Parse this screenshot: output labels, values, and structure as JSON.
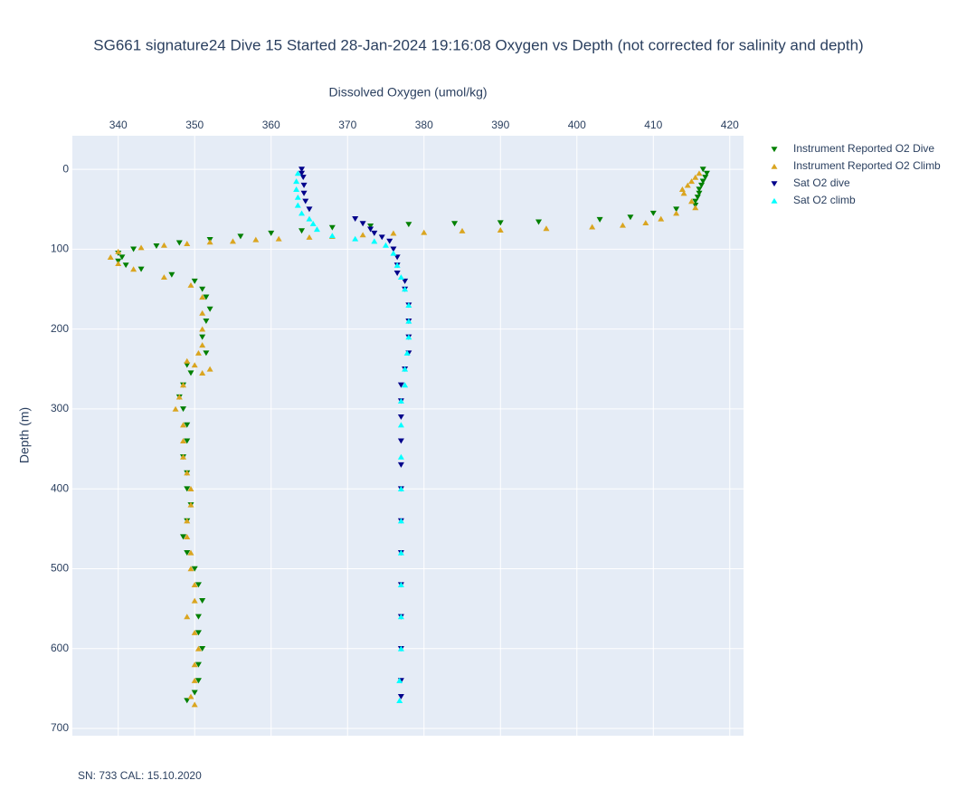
{
  "chart_data": {
    "type": "scatter",
    "title": "SG661 signature24 Dive 15 Started 28-Jan-2024 19:16:08  Oxygen vs Depth (not corrected for salinity and depth)",
    "x_label": "Dissolved Oxygen (umol/kg)",
    "y_label": "Depth (m)",
    "annotation": "SN: 733  CAL: 15.10.2020",
    "xlim": [
      334,
      421.8
    ],
    "xticks": [
      340,
      350,
      360,
      370,
      380,
      390,
      400,
      410,
      420
    ],
    "ylim": [
      -42,
      709
    ],
    "yticks": [
      0,
      100,
      200,
      300,
      400,
      500,
      600,
      700
    ],
    "y_reversed": true,
    "grid": true,
    "legend": "top-right",
    "series": [
      {
        "name": "Instrument Reported O2 Dive",
        "color": "#008000",
        "marker": "triangle-down",
        "y": [
          0,
          5,
          10,
          15,
          20,
          25,
          30,
          35,
          40,
          45,
          50,
          55,
          60,
          63,
          66,
          67,
          68,
          69,
          71,
          73,
          77,
          80,
          84,
          88,
          92,
          96,
          100,
          105,
          110,
          115,
          120,
          125,
          132,
          140,
          150,
          160,
          175,
          190,
          210,
          230,
          245,
          255,
          270,
          285,
          300,
          320,
          340,
          360,
          380,
          400,
          420,
          440,
          460,
          480,
          500,
          520,
          540,
          560,
          580,
          600,
          620,
          640,
          655,
          665
        ],
        "x": [
          416.5,
          417,
          416.8,
          416.5,
          416.3,
          416,
          416,
          415.8,
          415.5,
          415.5,
          413,
          410,
          407,
          403,
          395,
          390,
          384,
          378,
          373,
          368,
          364,
          360,
          356,
          352,
          348,
          345,
          342,
          340,
          340.5,
          340,
          341,
          343,
          347,
          350,
          351,
          351.5,
          352,
          351.5,
          351,
          351.5,
          349,
          349.5,
          348.5,
          348,
          348.5,
          349,
          349,
          348.5,
          349,
          349,
          349.5,
          349,
          348.5,
          349,
          350,
          350.5,
          351,
          350.5,
          350.5,
          351,
          350.5,
          350.5,
          350,
          349
        ]
      },
      {
        "name": "Instrument Reported O2 Climb",
        "color": "#daa520",
        "marker": "triangle-up",
        "y": [
          670,
          660,
          640,
          620,
          600,
          580,
          560,
          540,
          520,
          500,
          480,
          460,
          440,
          420,
          400,
          380,
          360,
          340,
          320,
          300,
          285,
          270,
          255,
          250,
          245,
          240,
          230,
          220,
          200,
          180,
          160,
          145,
          135,
          125,
          118,
          110,
          103,
          98,
          95,
          93,
          91,
          90,
          88,
          87,
          85,
          84,
          82,
          80,
          79,
          77,
          76,
          74,
          72,
          70,
          67,
          62,
          55,
          48,
          40,
          30,
          25,
          20,
          15,
          10,
          5
        ],
        "x": [
          350,
          349.5,
          350,
          350,
          350.5,
          350,
          349,
          350,
          350,
          349.5,
          349.5,
          349,
          349,
          349.5,
          349.5,
          349,
          348.5,
          348.5,
          348.5,
          347.5,
          348,
          348.5,
          351,
          352,
          350,
          349,
          350.5,
          351,
          351,
          351,
          351,
          349.5,
          346,
          342,
          340,
          339,
          340,
          343,
          346,
          349,
          352,
          355,
          358,
          361,
          365,
          368,
          372,
          376,
          380,
          385,
          390,
          396,
          402,
          406,
          409,
          411,
          413,
          415.5,
          415,
          414,
          413.8,
          414.5,
          415,
          415.5,
          416
        ]
      },
      {
        "name": "Sat O2 dive",
        "color": "#00008b",
        "marker": "triangle-down",
        "y": [
          0,
          5,
          10,
          20,
          30,
          40,
          50,
          62,
          68,
          75,
          80,
          85,
          90,
          100,
          110,
          120,
          130,
          140,
          150,
          170,
          190,
          210,
          230,
          250,
          270,
          290,
          310,
          340,
          370,
          400,
          440,
          480,
          520,
          560,
          600,
          640,
          660
        ],
        "x": [
          364,
          364,
          364.2,
          364.3,
          364.3,
          364.5,
          365,
          371,
          372,
          373,
          373.5,
          374.5,
          375.5,
          376,
          376.5,
          376.5,
          376.5,
          377.5,
          377.5,
          378,
          378,
          378,
          378,
          377.5,
          377,
          377,
          377,
          377,
          377,
          377,
          377,
          377,
          377,
          377,
          377,
          377,
          377
        ]
      },
      {
        "name": "Sat O2 climb",
        "color": "#00ffff",
        "marker": "triangle-up",
        "y": [
          665,
          640,
          600,
          560,
          520,
          480,
          440,
          400,
          360,
          320,
          290,
          270,
          250,
          230,
          210,
          190,
          170,
          150,
          135,
          120,
          105,
          95,
          90,
          87,
          83,
          75,
          68,
          62,
          55,
          45,
          35,
          25,
          15,
          5
        ],
        "x": [
          376.8,
          376.8,
          377,
          377,
          377,
          377,
          377,
          377,
          377,
          377,
          377,
          377.5,
          377.5,
          377.8,
          378,
          378,
          378,
          377.5,
          377,
          376.5,
          376,
          375,
          373.5,
          371,
          368,
          366,
          365.5,
          365,
          364,
          363.5,
          363.5,
          363.3,
          363.3,
          363.5
        ]
      }
    ]
  }
}
